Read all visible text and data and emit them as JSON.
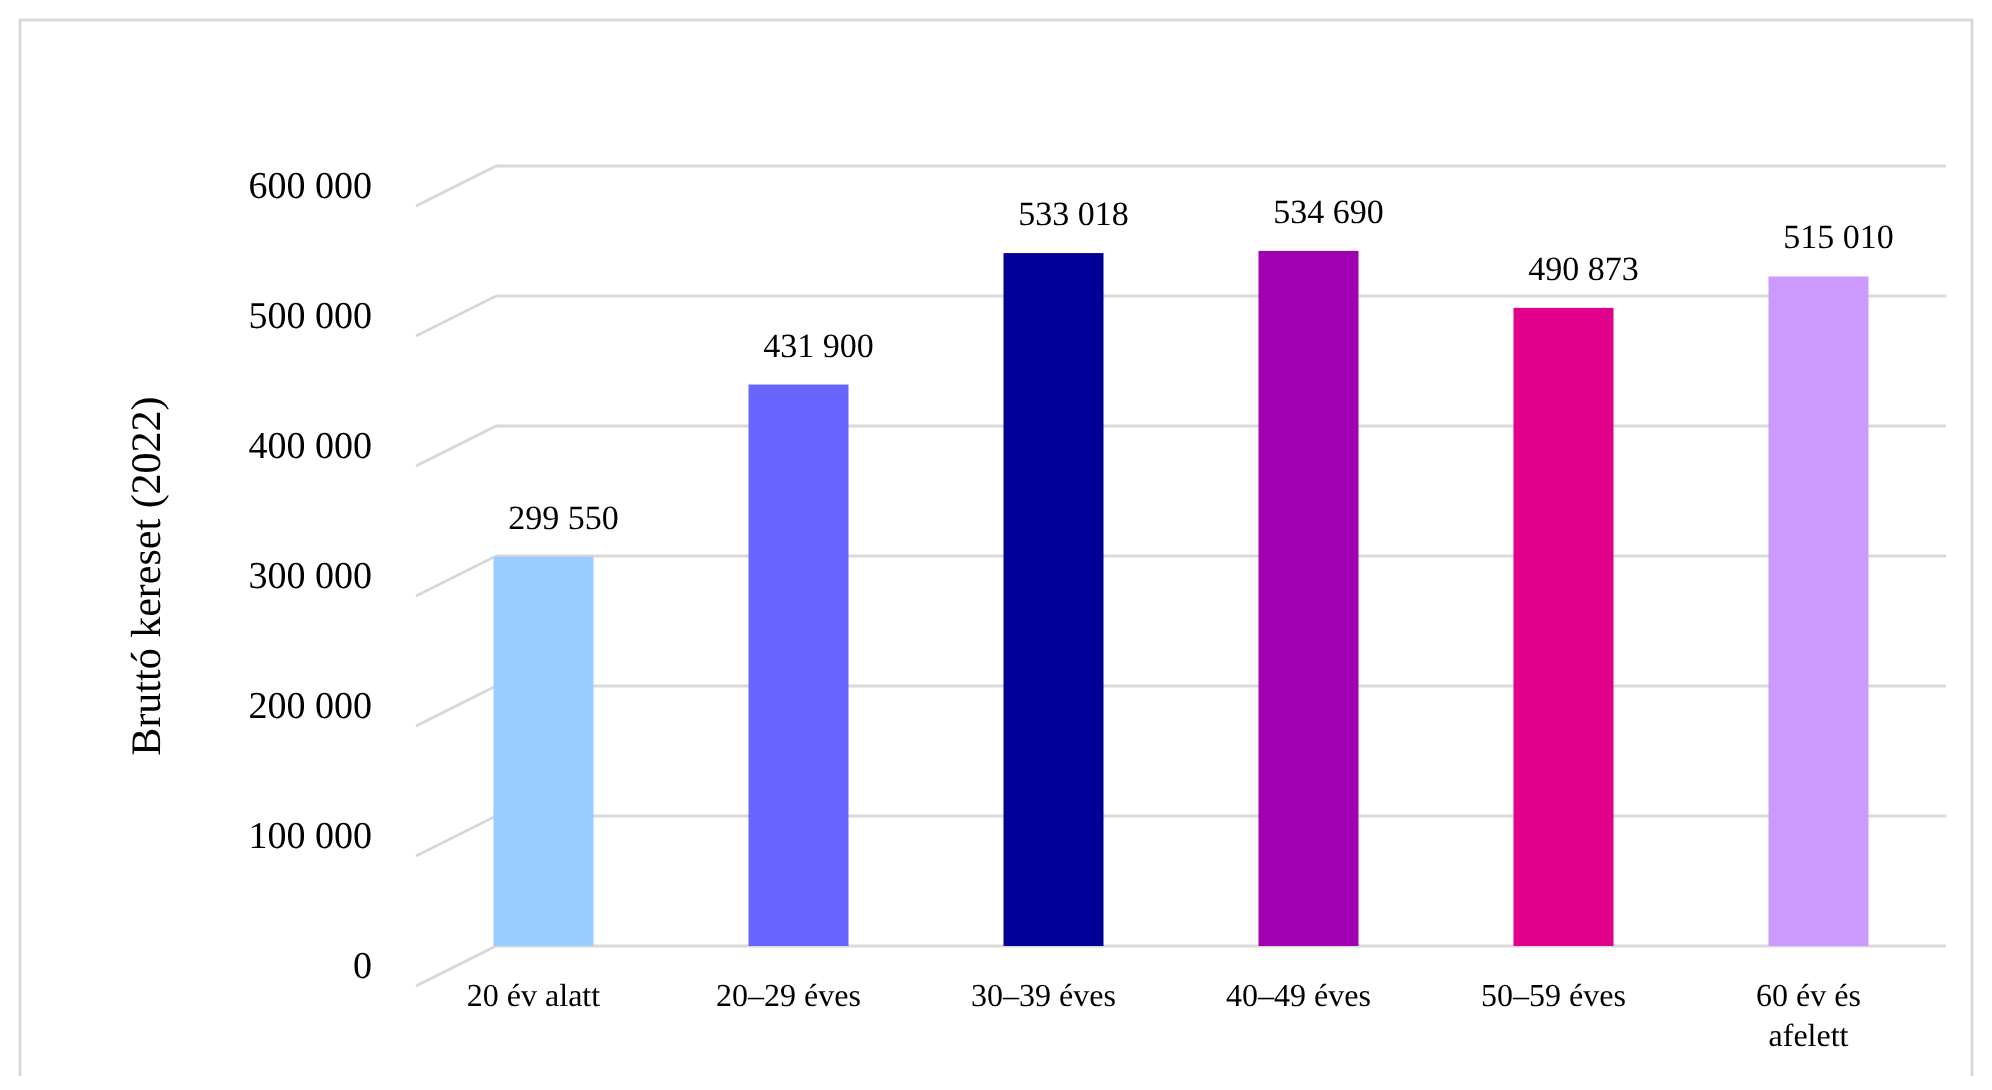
{
  "chart_data": {
    "type": "bar",
    "ylabel": "Bruttó kereset (2022)",
    "categories": [
      "20 év alatt",
      "20–29 éves",
      "30–39 éves",
      "40–49 éves",
      "50–59 éves",
      "60 év és afelett"
    ],
    "values": [
      299550,
      431900,
      533018,
      534690,
      490873,
      515010
    ],
    "value_labels": [
      "299 550",
      "431 900",
      "533 018",
      "534 690",
      "490 873",
      "515 010"
    ],
    "colors": [
      "#99ccff",
      "#6666ff",
      "#000099",
      "#a000b0",
      "#e0008c",
      "#cc99ff"
    ],
    "ylim": [
      0,
      600000
    ],
    "yticks": [
      {
        "value": 0,
        "label": "0"
      },
      {
        "value": 100000,
        "label": "100 000"
      },
      {
        "value": 200000,
        "label": "200 000"
      },
      {
        "value": 300000,
        "label": "300 000"
      },
      {
        "value": 400000,
        "label": "400 000"
      },
      {
        "value": 500000,
        "label": "500 000"
      },
      {
        "value": 600000,
        "label": "600 000"
      }
    ],
    "grid": true
  }
}
